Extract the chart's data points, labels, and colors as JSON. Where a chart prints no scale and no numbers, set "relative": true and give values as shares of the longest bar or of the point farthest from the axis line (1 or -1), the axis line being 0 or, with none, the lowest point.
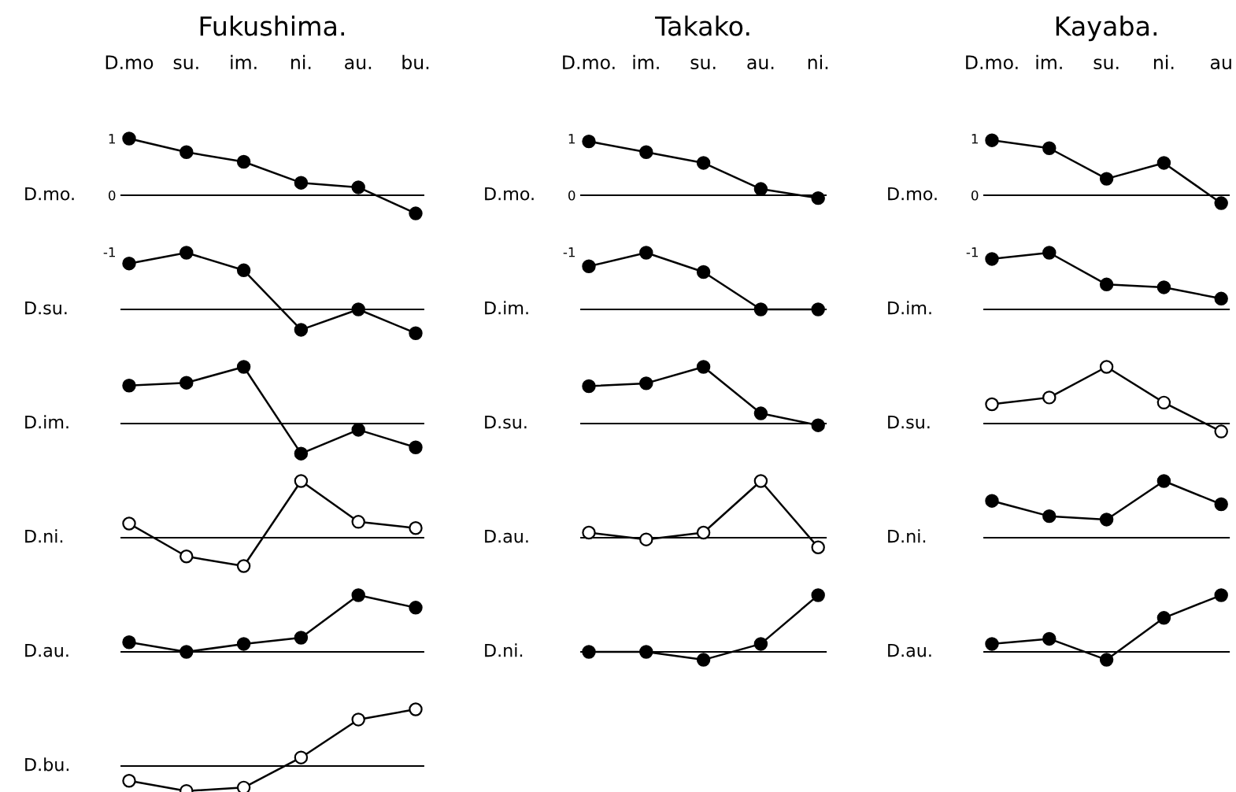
{
  "chart_data": [
    {
      "type": "line",
      "title": "Fukushima.",
      "categories": [
        "D.mo",
        "su.",
        "im.",
        "ni.",
        "au.",
        "bu."
      ],
      "ylabel": "D.mo.",
      "ylim": [
        -1,
        1
      ],
      "yticks": [
        1,
        0,
        -1
      ],
      "marker": "circle",
      "series": [
        {
          "color": "#000000",
          "values": [
            1,
            0.76,
            0.59,
            0.22,
            0.14,
            -0.32
          ]
        }
      ]
    },
    {
      "type": "line",
      "categories": [
        null,
        null,
        null,
        null,
        null,
        null
      ],
      "ylabel": "D.su.",
      "relative": true,
      "marker": "circle",
      "series": [
        {
          "color": "#000000",
          "values": [
            0.81,
            1,
            0.69,
            -0.36,
            0,
            -0.42
          ]
        }
      ]
    },
    {
      "type": "line",
      "categories": [
        null,
        null,
        null,
        null,
        null,
        null
      ],
      "ylabel": "D.im.",
      "relative": true,
      "marker": "circle",
      "series": [
        {
          "color": "#000000",
          "values": [
            0.67,
            0.72,
            1,
            -0.53,
            -0.11,
            -0.42
          ]
        }
      ]
    },
    {
      "type": "line",
      "categories": [
        null,
        null,
        null,
        null,
        null,
        null
      ],
      "ylabel": "D.ni.",
      "relative": true,
      "marker": "circle",
      "series": [
        {
          "color": "#000000",
          "colors": [
            "#ffffff",
            "#ffffff",
            "#ffffff",
            "#ffffff",
            "#ffffff",
            "#ffffff"
          ],
          "values": [
            0.25,
            -0.33,
            -0.5,
            1,
            0.28,
            0.17
          ]
        }
      ]
    },
    {
      "type": "line",
      "categories": [
        null,
        null,
        null,
        null,
        null,
        null
      ],
      "ylabel": "D.au.",
      "relative": true,
      "marker": "circle",
      "series": [
        {
          "color": "#000000",
          "values": [
            0.17,
            0,
            0.14,
            0.25,
            1,
            0.78
          ]
        }
      ]
    },
    {
      "type": "line",
      "categories": [
        null,
        null,
        null,
        null,
        null,
        null
      ],
      "ylabel": "D.bu.",
      "relative": true,
      "marker": "circle",
      "series": [
        {
          "color": "#000000",
          "colors": [
            "#ffffff",
            "#ffffff",
            "#ffffff",
            "#ffffff",
            "#ffffff",
            "#ffffff"
          ],
          "values": [
            -0.26,
            -0.44,
            -0.38,
            0.15,
            0.82,
            1
          ]
        }
      ]
    },
    {
      "type": "line",
      "title": "Takako.",
      "categories": [
        "D.mo.",
        "im.",
        "su.",
        "au.",
        "ni."
      ],
      "ylabel": "D.mo.",
      "ylim": [
        -1,
        1
      ],
      "yticks": [
        1,
        0,
        -1
      ],
      "marker": "circle",
      "series": [
        {
          "color": "#000000",
          "values": [
            0.95,
            0.76,
            0.57,
            0.11,
            -0.05
          ]
        }
      ]
    },
    {
      "type": "line",
      "categories": [
        null,
        null,
        null,
        null,
        null
      ],
      "ylabel": "D.im.",
      "relative": true,
      "marker": "circle",
      "series": [
        {
          "color": "#000000",
          "values": [
            0.76,
            1,
            0.66,
            0,
            0
          ]
        }
      ]
    },
    {
      "type": "line",
      "categories": [
        null,
        null,
        null,
        null,
        null
      ],
      "ylabel": "D.su.",
      "relative": true,
      "marker": "circle",
      "series": [
        {
          "color": "#000000",
          "values": [
            0.66,
            0.71,
            1,
            0.18,
            -0.03
          ]
        }
      ]
    },
    {
      "type": "line",
      "categories": [
        null,
        null,
        null,
        null,
        null
      ],
      "ylabel": "D.au.",
      "relative": true,
      "marker": "circle",
      "series": [
        {
          "color": "#000000",
          "colors": [
            "#ffffff",
            "#ffffff",
            "#ffffff",
            "#ffffff",
            "#ffffff"
          ],
          "values": [
            0.09,
            -0.03,
            0.09,
            1,
            -0.17
          ]
        }
      ]
    },
    {
      "type": "line",
      "categories": [
        null,
        null,
        null,
        null,
        null
      ],
      "ylabel": "D.ni.",
      "relative": true,
      "marker": "circle",
      "series": [
        {
          "color": "#000000",
          "values": [
            0,
            0,
            -0.14,
            0.14,
            1
          ]
        }
      ]
    },
    {
      "type": "line",
      "title": "Kayaba.",
      "categories": [
        "D.mo.",
        "im.",
        "su.",
        "ni.",
        "au"
      ],
      "ylabel": "D.mo.",
      "ylim": [
        -1,
        1
      ],
      "yticks": [
        1,
        0,
        -1
      ],
      "marker": "circle",
      "series": [
        {
          "color": "#000000",
          "values": [
            0.97,
            0.83,
            0.29,
            0.57,
            -0.14
          ]
        }
      ]
    },
    {
      "type": "line",
      "categories": [
        null,
        null,
        null,
        null,
        null
      ],
      "ylabel": "D.im.",
      "relative": true,
      "marker": "circle",
      "series": [
        {
          "color": "#000000",
          "values": [
            0.89,
            1,
            0.44,
            0.39,
            0.19
          ]
        }
      ]
    },
    {
      "type": "line",
      "categories": [
        null,
        null,
        null,
        null,
        null
      ],
      "ylabel": "D.su.",
      "relative": true,
      "marker": "circle",
      "series": [
        {
          "color": "#000000",
          "colors": [
            "#ffffff",
            "#ffffff",
            "#ffffff",
            "#ffffff",
            "#ffffff"
          ],
          "values": [
            0.34,
            0.46,
            1,
            0.37,
            -0.14
          ]
        }
      ]
    },
    {
      "type": "line",
      "categories": [
        null,
        null,
        null,
        null,
        null
      ],
      "ylabel": "D.ni.",
      "relative": true,
      "marker": "circle",
      "series": [
        {
          "color": "#000000",
          "values": [
            0.65,
            0.38,
            0.32,
            1,
            0.59
          ]
        }
      ]
    },
    {
      "type": "line",
      "categories": [
        null,
        null,
        null,
        null,
        null
      ],
      "ylabel": "D.au.",
      "relative": true,
      "marker": "circle",
      "series": [
        {
          "color": "#000000",
          "values": [
            0.14,
            0.23,
            -0.14,
            0.6,
            1
          ]
        }
      ]
    }
  ]
}
